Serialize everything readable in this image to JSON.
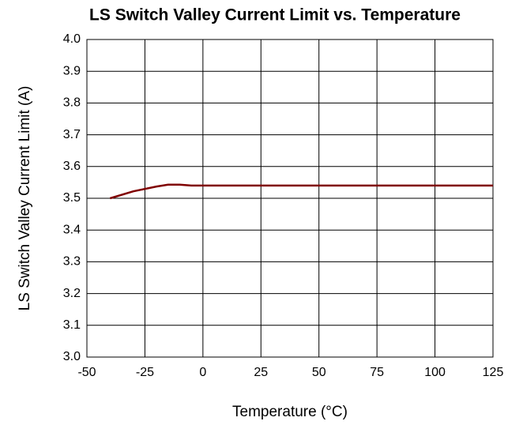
{
  "chart_data": {
    "type": "line",
    "title": "LS Switch Valley Current Limit vs. Temperature",
    "x_label": "Temperature (°C)",
    "y_label": "LS Switch Valley Current Limit (A)",
    "x": [
      -40,
      -30,
      -20,
      -15,
      -10,
      -5,
      0,
      25,
      50,
      75,
      100,
      125
    ],
    "series": [
      {
        "name": "LS Switch Valley Current Limit",
        "color": "#800000",
        "values": [
          3.5,
          3.522,
          3.537,
          3.543,
          3.543,
          3.54,
          3.54,
          3.54,
          3.54,
          3.54,
          3.54,
          3.54
        ]
      }
    ],
    "xlim": [
      -50,
      125
    ],
    "xticks": [
      -50,
      -25,
      0,
      25,
      50,
      75,
      100,
      125
    ],
    "ylim": [
      3,
      4
    ],
    "yticks": [
      {
        "value": 3,
        "label": "3.0"
      },
      3.1,
      3.2,
      3.3,
      3.4,
      3.5,
      3.6,
      3.7,
      3.8,
      3.9,
      {
        "value": 4,
        "label": "4.0"
      }
    ],
    "grid": true
  }
}
